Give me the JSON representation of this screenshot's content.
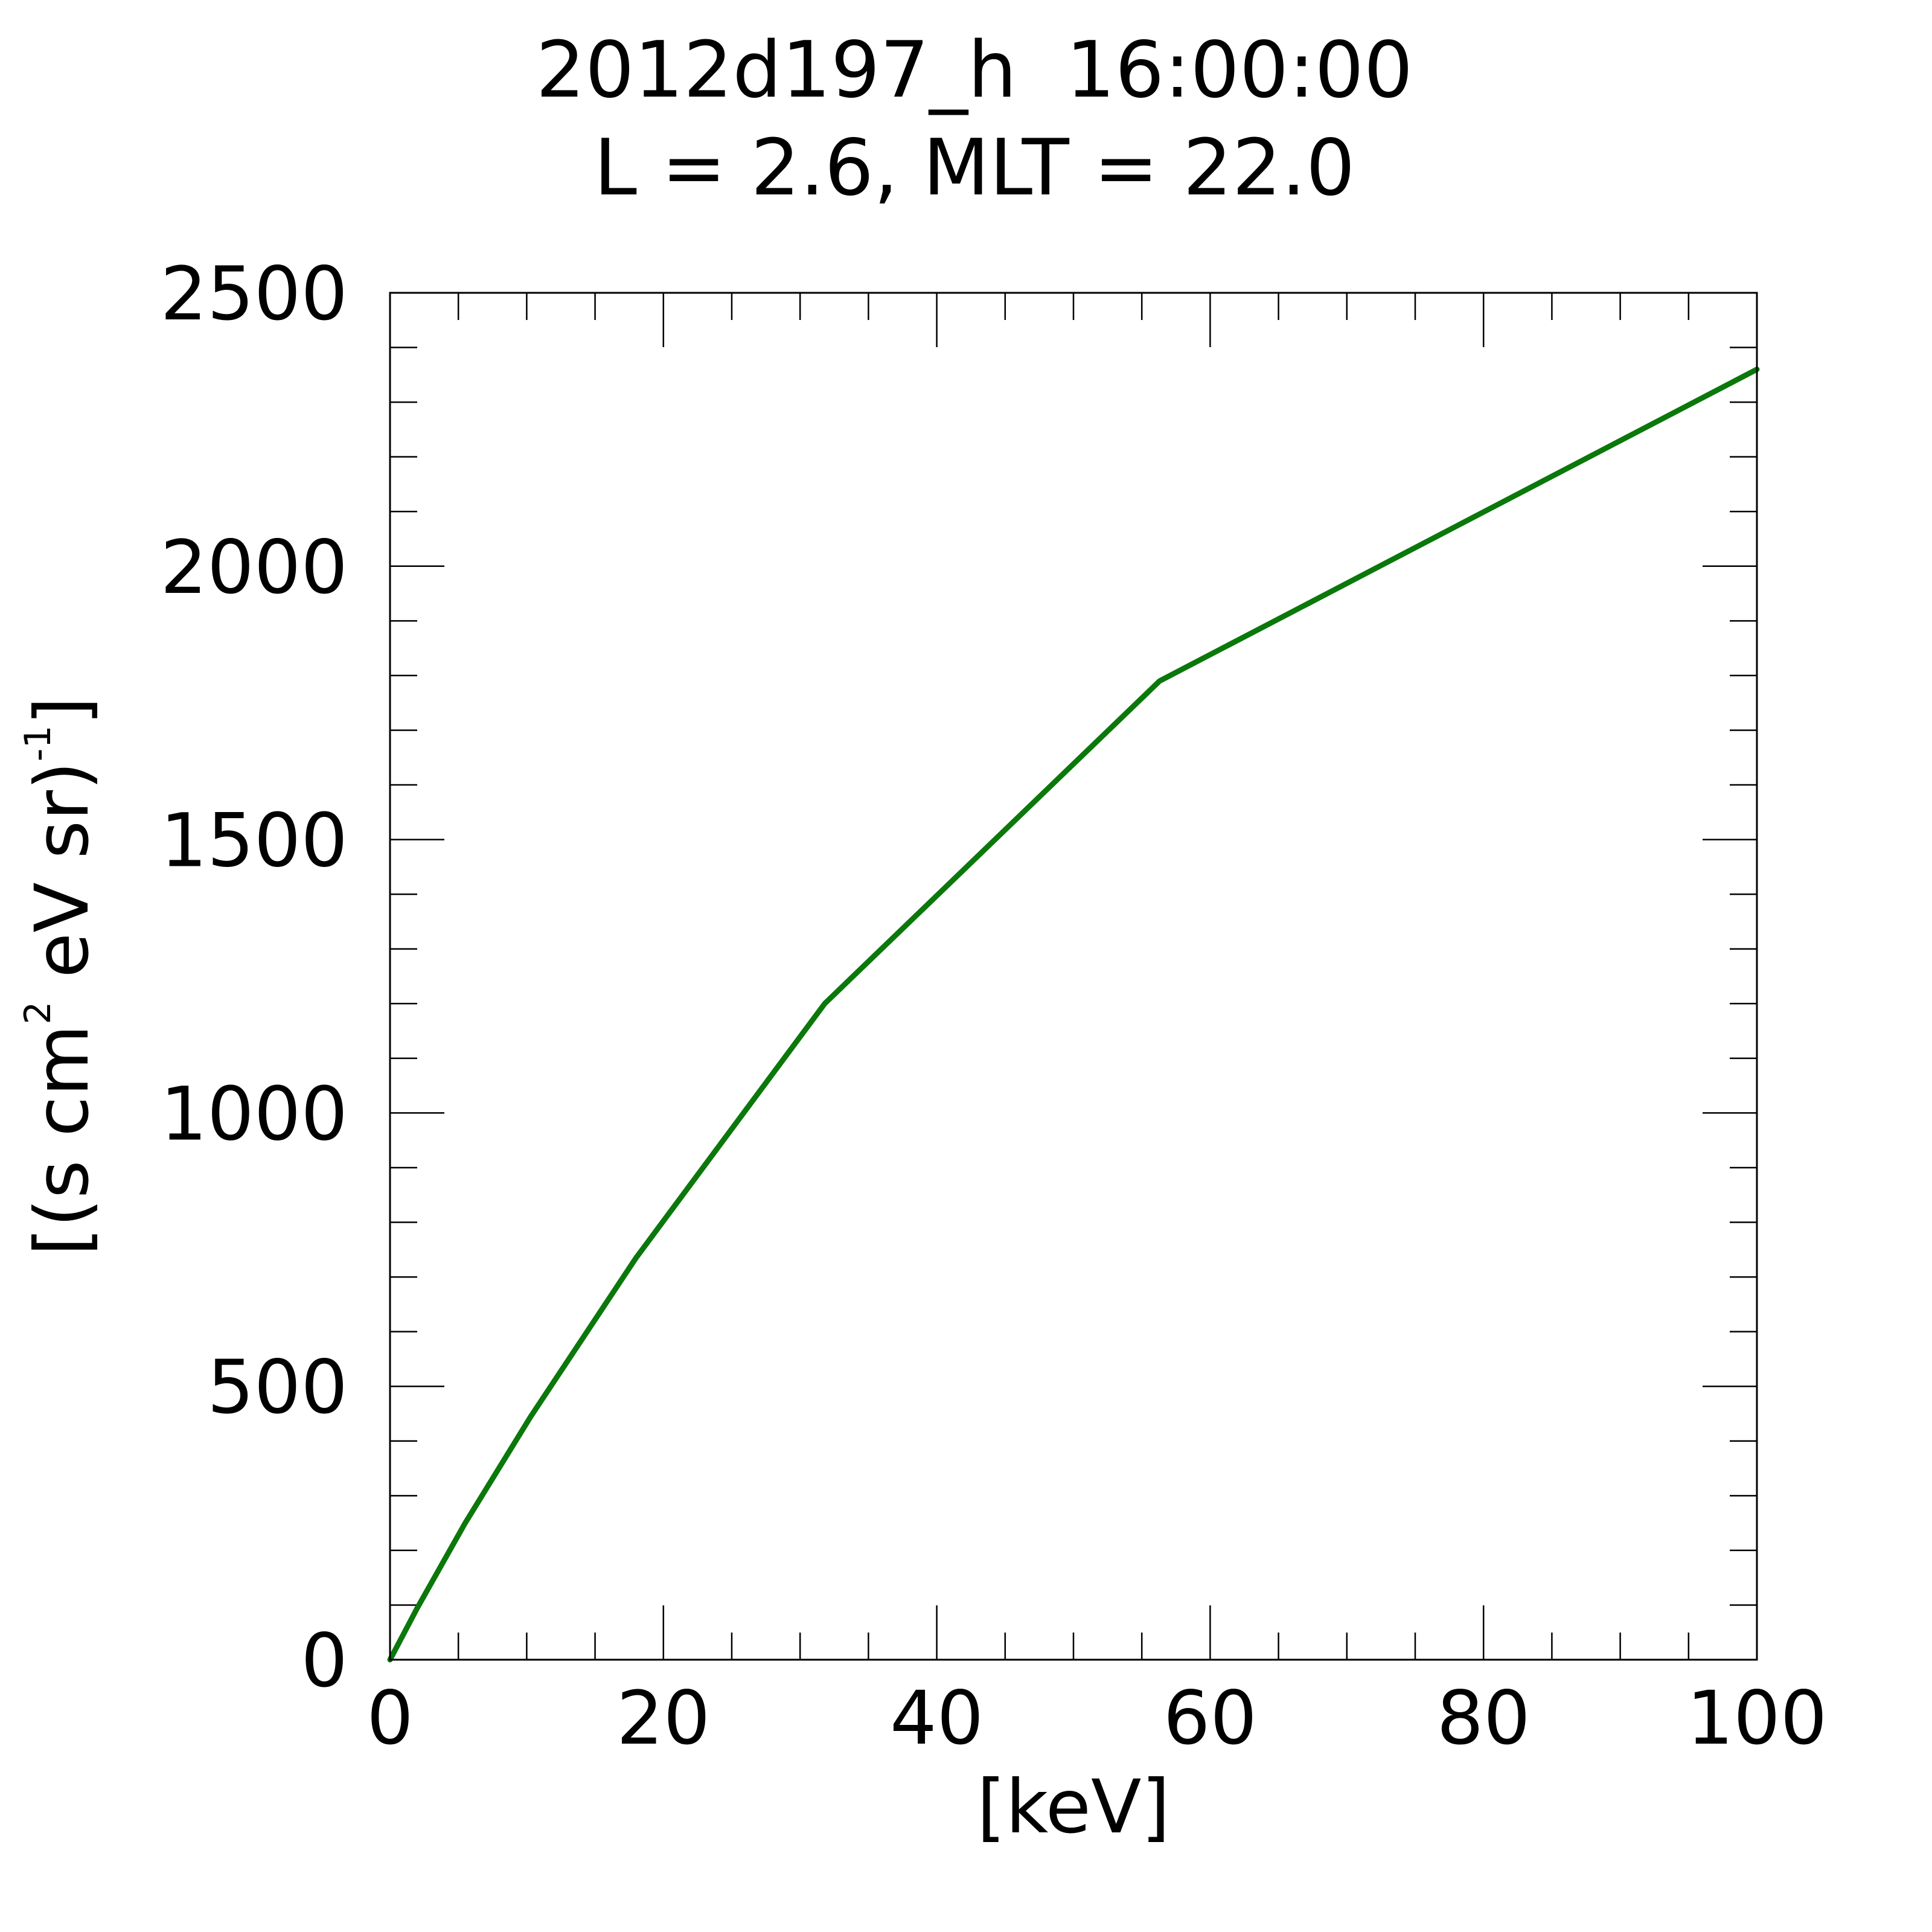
{
  "chart_data": {
    "type": "line",
    "title": "2012d197_h  16:00:00",
    "subtitle": "L = 2.6, MLT = 22.0",
    "xlabel": "[keV]",
    "ylabel": {
      "prefix": "[(s cm",
      "sup1": "2",
      "middle": " eV sr)",
      "sup2": "-1",
      "suffix": "]"
    },
    "xlim": [
      0,
      100
    ],
    "ylim": [
      0,
      2500
    ],
    "x_ticks": [
      0,
      20,
      40,
      60,
      80,
      100
    ],
    "y_ticks": [
      0,
      500,
      1000,
      1500,
      2000,
      2500
    ],
    "x_tick_labels": [
      "0",
      "20",
      "40",
      "60",
      "80",
      "100"
    ],
    "y_tick_labels": [
      "0",
      "500",
      "1000",
      "1500",
      "2000",
      "2500"
    ],
    "x_minor_step": 5,
    "y_minor_step": 100,
    "grid": false,
    "legend": "none",
    "series": [
      {
        "color": "#0a780a",
        "x": [
          0,
          2,
          5.5,
          10.3,
          18,
          31.8,
          56.3,
          100
        ],
        "y": [
          0,
          95,
          250,
          445,
          735,
          1200,
          1790,
          2360
        ]
      }
    ]
  }
}
